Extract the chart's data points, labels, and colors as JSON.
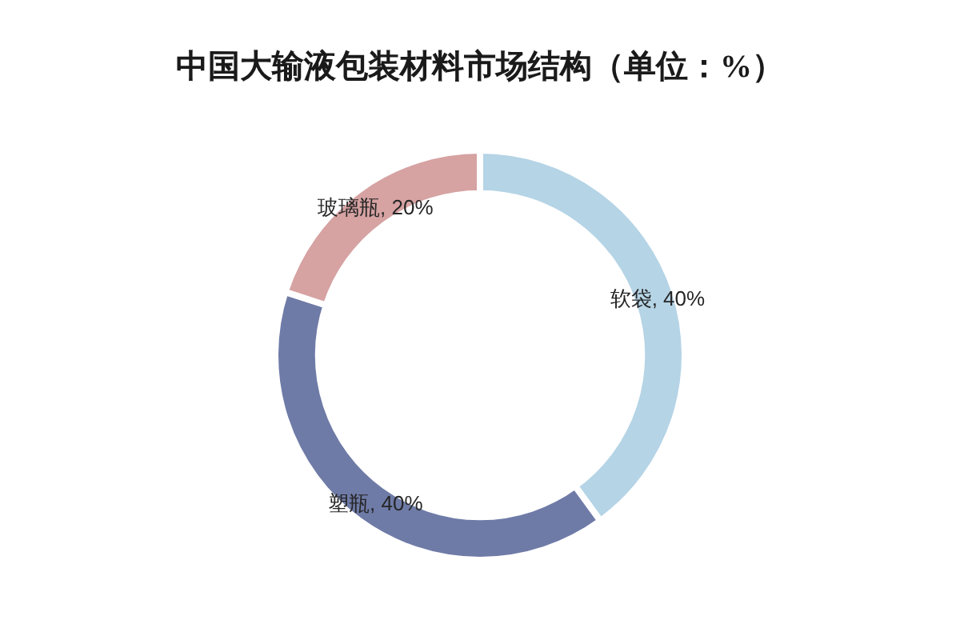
{
  "chart_data": {
    "type": "donut",
    "title": "中国大输液包装材料市场结构（单位：%）",
    "categories": [
      "软袋",
      "塑瓶",
      "玻璃瓶"
    ],
    "values": [
      40,
      40,
      20
    ],
    "colors": [
      "#b5d4e6",
      "#6f7ba7",
      "#d6a2a2"
    ],
    "value_labels": [
      "40%",
      "40%",
      "20%"
    ]
  }
}
